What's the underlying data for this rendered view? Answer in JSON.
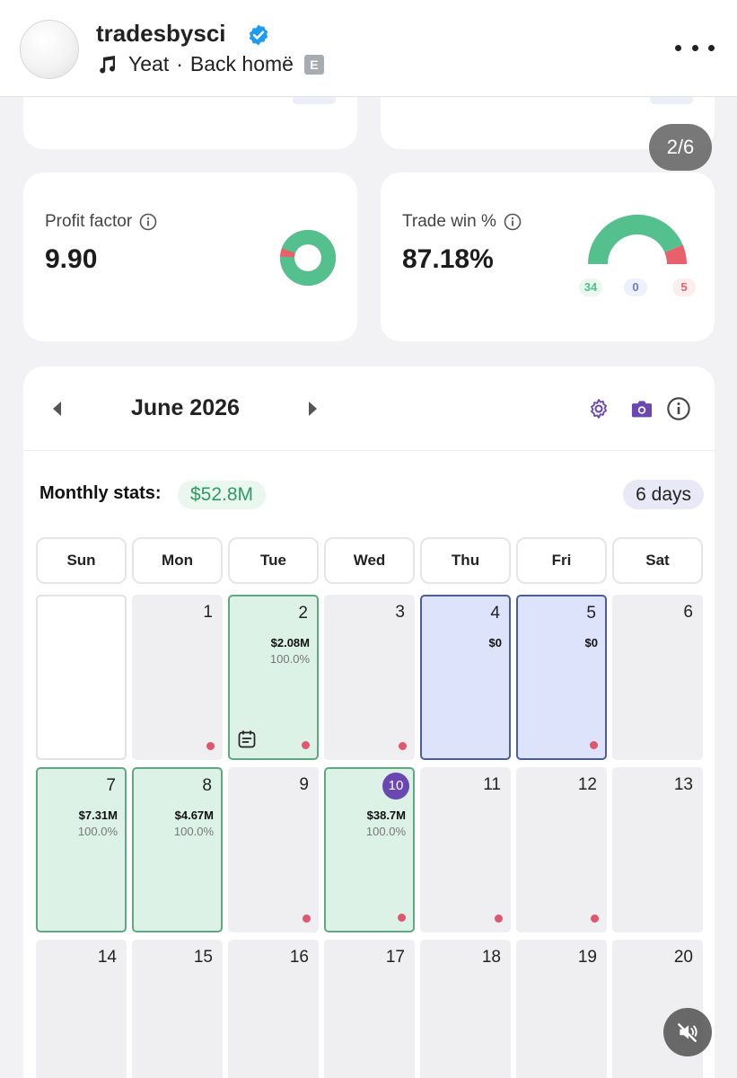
{
  "header": {
    "username": "tradesbysci",
    "music_artist": "Yeat",
    "music_separator": "·",
    "music_track": "Back homë",
    "explicit_badge": "E",
    "icons": {
      "verified": "verified-badge-icon",
      "music": "music-note-icon",
      "more": "more-options-icon"
    },
    "colors": {
      "verified": "#1d9bf0"
    }
  },
  "carousel": {
    "page_indicator": "2/6"
  },
  "stats": {
    "profit_factor": {
      "label": "Profit factor",
      "value": "9.90",
      "chart_fraction": 0.95,
      "colors": {
        "win": "#54c08d",
        "loss": "#e8616a"
      }
    },
    "trade_win": {
      "label": "Trade win %",
      "value": "87.18%",
      "wins": "34",
      "breakeven": "0",
      "losses": "5",
      "colors": {
        "win": "#54c08d",
        "breakeven": "#6b7cc9",
        "loss": "#e8616a"
      }
    }
  },
  "calendar": {
    "month": "June 2026",
    "monthly_stats_label": "Monthly stats:",
    "monthly_stats_value": "$52.8M",
    "trading_days": "6 days",
    "weekdays": [
      "Sun",
      "Mon",
      "Tue",
      "Wed",
      "Thu",
      "Fri",
      "Sat"
    ],
    "days": [
      {
        "num": "",
        "type": "empty",
        "pnl": "",
        "pct": "",
        "dot": false,
        "note": false
      },
      {
        "num": "1",
        "type": "gray",
        "pnl": "",
        "pct": "",
        "dot": true,
        "note": false
      },
      {
        "num": "2",
        "type": "green",
        "pnl": "$2.08M",
        "pct": "100.0%",
        "dot": true,
        "note": true
      },
      {
        "num": "3",
        "type": "gray",
        "pnl": "",
        "pct": "",
        "dot": true,
        "note": false
      },
      {
        "num": "4",
        "type": "blue",
        "pnl": "$0",
        "pct": "",
        "dot": false,
        "note": false
      },
      {
        "num": "5",
        "type": "blue",
        "pnl": "$0",
        "pct": "",
        "dot": true,
        "note": false
      },
      {
        "num": "6",
        "type": "gray",
        "pnl": "",
        "pct": "",
        "dot": false,
        "note": false
      },
      {
        "num": "7",
        "type": "green",
        "pnl": "$7.31M",
        "pct": "100.0%",
        "dot": false,
        "note": false
      },
      {
        "num": "8",
        "type": "green",
        "pnl": "$4.67M",
        "pct": "100.0%",
        "dot": false,
        "note": false
      },
      {
        "num": "9",
        "type": "gray",
        "pnl": "",
        "pct": "",
        "dot": true,
        "note": false
      },
      {
        "num": "10",
        "type": "green",
        "pnl": "$38.7M",
        "pct": "100.0%",
        "dot": true,
        "note": false,
        "today": true
      },
      {
        "num": "11",
        "type": "gray",
        "pnl": "",
        "pct": "",
        "dot": true,
        "note": false
      },
      {
        "num": "12",
        "type": "gray",
        "pnl": "",
        "pct": "",
        "dot": true,
        "note": false
      },
      {
        "num": "13",
        "type": "gray",
        "pnl": "",
        "pct": "",
        "dot": false,
        "note": false
      },
      {
        "num": "14",
        "type": "gray",
        "pnl": "",
        "pct": "",
        "dot": false,
        "note": false
      },
      {
        "num": "15",
        "type": "gray",
        "pnl": "",
        "pct": "",
        "dot": false,
        "note": false
      },
      {
        "num": "16",
        "type": "gray",
        "pnl": "",
        "pct": "",
        "dot": false,
        "note": false
      },
      {
        "num": "17",
        "type": "gray",
        "pnl": "",
        "pct": "",
        "dot": false,
        "note": false
      },
      {
        "num": "18",
        "type": "gray",
        "pnl": "",
        "pct": "",
        "dot": false,
        "note": false
      },
      {
        "num": "19",
        "type": "gray",
        "pnl": "",
        "pct": "",
        "dot": false,
        "note": false
      },
      {
        "num": "20",
        "type": "gray",
        "pnl": "",
        "pct": "",
        "dot": false,
        "note": false
      }
    ],
    "icons": {
      "prev": "chevron-left-icon",
      "next": "chevron-right-icon",
      "settings": "gear-icon",
      "screenshot": "camera-icon",
      "info": "info-icon",
      "note": "note-icon"
    },
    "colors": {
      "accent": "#6b47b1",
      "profit": "#2d9b63",
      "loss_dot": "#e0566b"
    }
  },
  "media": {
    "icons": {
      "mute": "muted-speaker-icon"
    }
  }
}
